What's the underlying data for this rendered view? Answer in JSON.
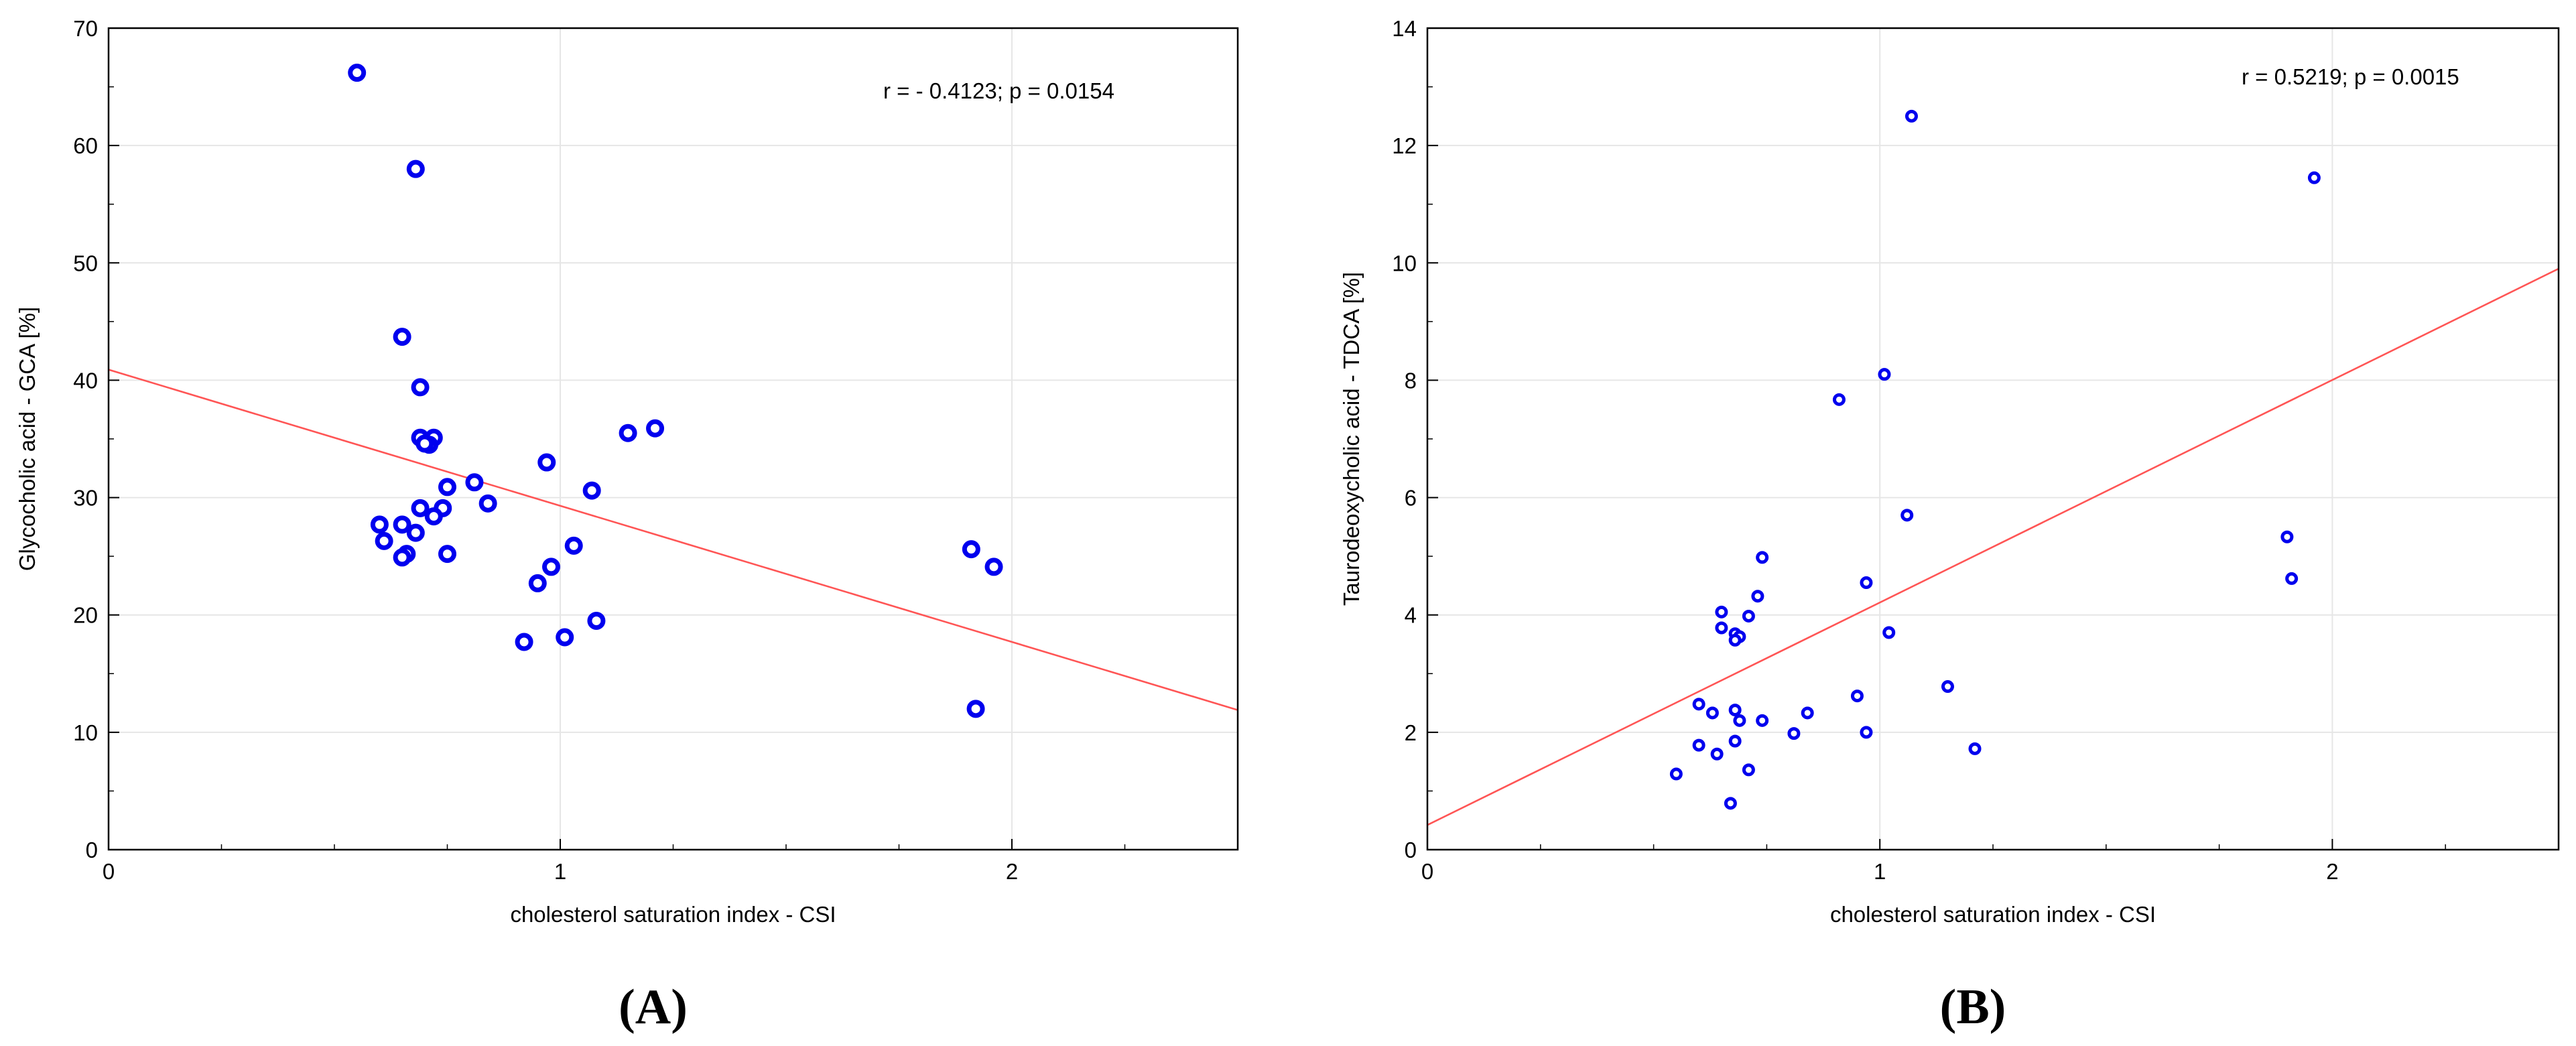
{
  "chart_data": [
    {
      "type": "scatter",
      "panel_label": "(A)",
      "xlabel": "cholesterol saturation index  - CSI",
      "ylabel": "Glycocholic acid  - GCA [%]",
      "xlim": [
        0,
        2.5
      ],
      "ylim": [
        0,
        70
      ],
      "xticks": [
        0,
        1,
        2
      ],
      "yticks": [
        0,
        10,
        20,
        30,
        40,
        50,
        60,
        70
      ],
      "annotation": "r = - 0.4123;  p = 0.0154",
      "grid": true,
      "marker_color": "#0000ee",
      "regression_color": "#ff5555",
      "regression_line": {
        "x": [
          0,
          2.5
        ],
        "y": [
          40.9,
          11.9
        ]
      },
      "points": [
        {
          "x": 0.55,
          "y": 66.2
        },
        {
          "x": 0.68,
          "y": 58.0
        },
        {
          "x": 0.65,
          "y": 43.7
        },
        {
          "x": 0.69,
          "y": 39.4
        },
        {
          "x": 0.69,
          "y": 35.1
        },
        {
          "x": 0.72,
          "y": 35.1
        },
        {
          "x": 0.71,
          "y": 34.5
        },
        {
          "x": 0.7,
          "y": 34.6
        },
        {
          "x": 0.75,
          "y": 30.9
        },
        {
          "x": 0.81,
          "y": 31.3
        },
        {
          "x": 0.84,
          "y": 29.5
        },
        {
          "x": 0.74,
          "y": 29.1
        },
        {
          "x": 0.69,
          "y": 29.1
        },
        {
          "x": 0.72,
          "y": 28.4
        },
        {
          "x": 0.6,
          "y": 27.7
        },
        {
          "x": 0.65,
          "y": 27.7
        },
        {
          "x": 0.68,
          "y": 27.0
        },
        {
          "x": 0.61,
          "y": 26.3
        },
        {
          "x": 0.66,
          "y": 25.2
        },
        {
          "x": 0.65,
          "y": 24.9
        },
        {
          "x": 0.75,
          "y": 25.2
        },
        {
          "x": 0.97,
          "y": 33.0
        },
        {
          "x": 1.07,
          "y": 30.6
        },
        {
          "x": 1.15,
          "y": 35.5
        },
        {
          "x": 1.21,
          "y": 35.9
        },
        {
          "x": 1.03,
          "y": 25.9
        },
        {
          "x": 0.98,
          "y": 24.1
        },
        {
          "x": 0.95,
          "y": 22.7
        },
        {
          "x": 1.08,
          "y": 19.5
        },
        {
          "x": 1.01,
          "y": 18.1
        },
        {
          "x": 0.92,
          "y": 17.7
        },
        {
          "x": 1.91,
          "y": 25.6
        },
        {
          "x": 1.96,
          "y": 24.1
        },
        {
          "x": 1.92,
          "y": 12.0
        }
      ]
    },
    {
      "type": "scatter",
      "panel_label": "(B)",
      "xlabel": "cholesterol saturation index  - CSI",
      "ylabel": "Taurodeoxycholic acid - TDCA [%]",
      "xlim": [
        0,
        2.5
      ],
      "ylim": [
        0,
        14
      ],
      "xticks": [
        0,
        1,
        2
      ],
      "yticks": [
        0,
        2,
        4,
        6,
        8,
        10,
        12,
        14
      ],
      "annotation": "r =  0.5219;  p = 0.0015",
      "grid": true,
      "marker_color": "#0000ee",
      "regression_color": "#ff5555",
      "regression_line": {
        "x": [
          0,
          2.5
        ],
        "y": [
          0.42,
          9.9
        ]
      },
      "points": [
        {
          "x": 1.07,
          "y": 12.5
        },
        {
          "x": 1.96,
          "y": 11.45
        },
        {
          "x": 1.01,
          "y": 8.1
        },
        {
          "x": 0.91,
          "y": 7.67
        },
        {
          "x": 1.06,
          "y": 5.7
        },
        {
          "x": 1.9,
          "y": 5.33
        },
        {
          "x": 1.91,
          "y": 4.62
        },
        {
          "x": 0.74,
          "y": 4.98
        },
        {
          "x": 0.97,
          "y": 4.55
        },
        {
          "x": 0.73,
          "y": 4.32
        },
        {
          "x": 0.65,
          "y": 4.05
        },
        {
          "x": 0.71,
          "y": 3.98
        },
        {
          "x": 0.65,
          "y": 3.78
        },
        {
          "x": 0.68,
          "y": 3.68
        },
        {
          "x": 0.69,
          "y": 3.63
        },
        {
          "x": 0.68,
          "y": 3.57
        },
        {
          "x": 1.02,
          "y": 3.7
        },
        {
          "x": 1.15,
          "y": 2.78
        },
        {
          "x": 0.95,
          "y": 2.62
        },
        {
          "x": 0.6,
          "y": 2.48
        },
        {
          "x": 0.63,
          "y": 2.33
        },
        {
          "x": 0.68,
          "y": 2.38
        },
        {
          "x": 0.84,
          "y": 2.33
        },
        {
          "x": 0.69,
          "y": 2.2
        },
        {
          "x": 0.74,
          "y": 2.2
        },
        {
          "x": 0.97,
          "y": 2.0
        },
        {
          "x": 0.81,
          "y": 1.98
        },
        {
          "x": 0.68,
          "y": 1.85
        },
        {
          "x": 0.6,
          "y": 1.78
        },
        {
          "x": 0.64,
          "y": 1.63
        },
        {
          "x": 1.21,
          "y": 1.72
        },
        {
          "x": 0.71,
          "y": 1.36
        },
        {
          "x": 0.55,
          "y": 1.29
        },
        {
          "x": 0.67,
          "y": 0.79
        }
      ]
    }
  ]
}
